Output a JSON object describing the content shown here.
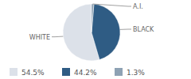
{
  "chart_data": {
    "type": "pie",
    "categories": [
      "WHITE",
      "BLACK",
      "A.I."
    ],
    "values": [
      54.5,
      44.2,
      1.3
    ],
    "value_labels": [
      "54.5%",
      "44.2%",
      "1.3%"
    ],
    "colors": [
      "#dce1e9",
      "#2f5c84",
      "#8ea2b4"
    ]
  }
}
